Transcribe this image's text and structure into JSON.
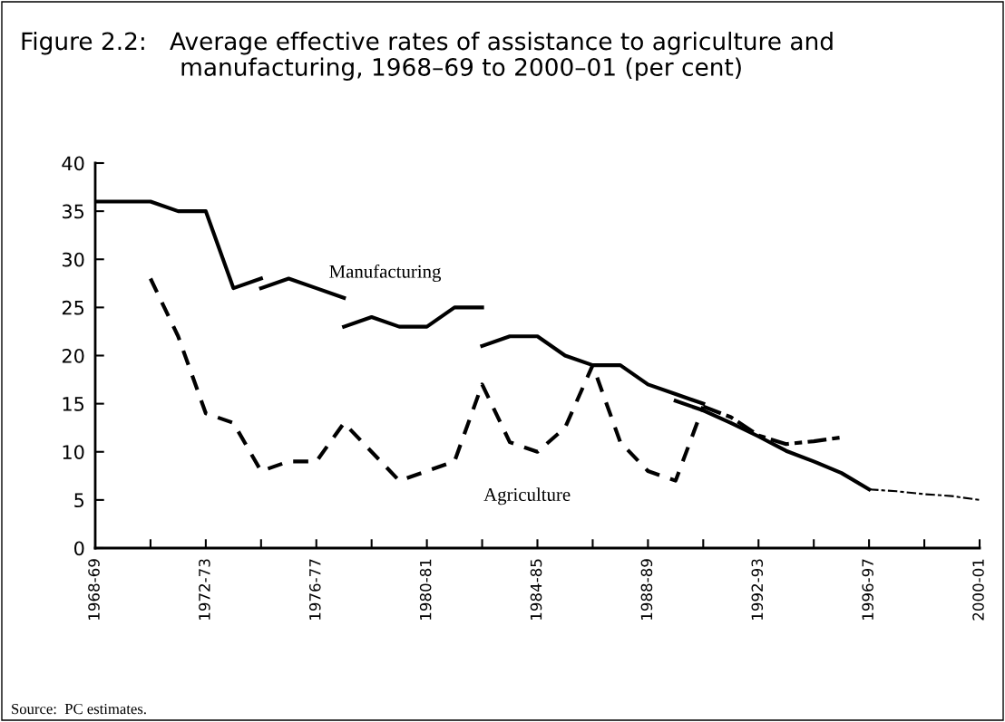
{
  "chart_data": {
    "type": "line",
    "title": "Figure 2.2:   Average effective rates of assistance to agriculture and\n                     manufacturing, 1968–69 to 2000–01 (per cent)",
    "annotations": [
      "Source:  PC estimates."
    ],
    "categories": [
      "1968-69",
      null,
      null,
      null,
      "1972-73",
      null,
      null,
      null,
      "1976-77",
      null,
      null,
      null,
      "1980-81",
      null,
      null,
      null,
      "1984-85",
      null,
      null,
      null,
      "1988-89",
      null,
      null,
      null,
      "1992-93",
      null,
      null,
      null,
      "1996-97",
      null,
      null,
      null,
      "2000-01"
    ],
    "ylim": [
      0,
      40
    ],
    "yticks": [
      0,
      5,
      10,
      15,
      20,
      25,
      30,
      35,
      40
    ],
    "grid": false,
    "legend": false,
    "marker": "none",
    "series": [
      {
        "color": "#000000",
        "line_style": "solid",
        "values": [
          36,
          36,
          36,
          35,
          35,
          27,
          28,
          null,
          null,
          null,
          null,
          null,
          null,
          null,
          null,
          null,
          null,
          null,
          null,
          null,
          null,
          null,
          null,
          null,
          null,
          null,
          null,
          null,
          null,
          null,
          null,
          null,
          null
        ]
      },
      {
        "name": "Manufacturing",
        "color": "#000000",
        "line_style": "solid",
        "values": [
          null,
          null,
          null,
          null,
          null,
          null,
          27,
          28,
          27,
          26,
          null,
          null,
          null,
          null,
          null,
          null,
          null,
          null,
          null,
          null,
          null,
          null,
          null,
          null,
          null,
          null,
          null,
          null,
          null,
          null,
          null,
          null,
          null
        ]
      },
      {
        "color": "#000000",
        "line_style": "solid",
        "values": [
          null,
          null,
          null,
          null,
          null,
          null,
          null,
          null,
          null,
          23,
          24,
          23,
          23,
          25,
          25,
          null,
          null,
          null,
          null,
          null,
          null,
          null,
          null,
          null,
          null,
          null,
          null,
          null,
          null,
          null,
          null,
          null,
          null
        ]
      },
      {
        "color": "#000000",
        "line_style": "solid",
        "values": [
          null,
          null,
          null,
          null,
          null,
          null,
          null,
          null,
          null,
          null,
          null,
          null,
          null,
          null,
          21,
          22,
          22,
          20,
          19,
          19,
          17,
          16,
          15,
          null,
          null,
          null,
          null,
          null,
          null,
          null,
          null,
          null,
          null
        ]
      },
      {
        "color": "#000000",
        "line_style": "solid",
        "values": [
          null,
          null,
          null,
          null,
          null,
          null,
          null,
          null,
          null,
          null,
          null,
          null,
          null,
          null,
          null,
          null,
          null,
          null,
          null,
          null,
          null,
          15.3,
          14.3,
          13,
          11.6,
          10.1,
          9,
          7.8,
          6.1,
          null,
          null,
          null,
          null
        ]
      },
      {
        "color": "#000000",
        "line_style": "dotted",
        "values": [
          null,
          null,
          null,
          null,
          null,
          null,
          null,
          null,
          null,
          null,
          null,
          null,
          null,
          null,
          null,
          null,
          null,
          null,
          null,
          null,
          null,
          null,
          null,
          null,
          null,
          null,
          null,
          null,
          6.1,
          5.9,
          5.6,
          5.4,
          5.0
        ]
      },
      {
        "name": "Agriculture",
        "color": "#000000",
        "line_style": "dashed",
        "values": [
          null,
          null,
          28,
          22,
          14,
          13,
          8,
          9,
          9,
          13,
          10,
          7,
          8,
          9,
          17,
          11,
          10,
          12.5,
          19,
          11,
          8,
          7,
          14.7,
          null,
          null,
          null,
          null,
          null,
          null,
          null,
          null,
          null,
          null
        ]
      },
      {
        "color": "#000000",
        "line_style": "dotted",
        "values": [
          null,
          null,
          null,
          null,
          null,
          null,
          null,
          null,
          null,
          null,
          null,
          null,
          null,
          null,
          null,
          null,
          null,
          null,
          null,
          null,
          null,
          null,
          14.7,
          13.6,
          11.7,
          10.8,
          11.1,
          11.5,
          null,
          null,
          null,
          null,
          null
        ]
      }
    ]
  }
}
